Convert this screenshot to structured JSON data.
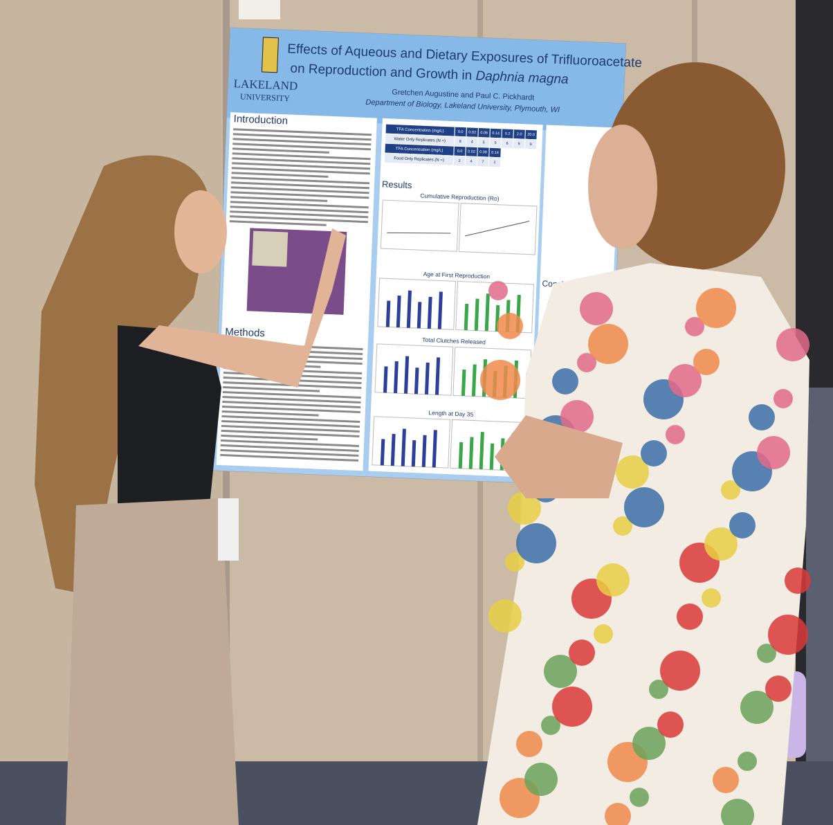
{
  "poster": {
    "logo": {
      "line1": "LAKELAND",
      "line2": "UNIVERSITY"
    },
    "title": {
      "line1": "Effects of Aqueous and Dietary Exposures of Trifluoroacetate",
      "line2": "on Reproduction and Growth in",
      "species": "Daphnia magna"
    },
    "authors": "Gretchen Augustine and Paul C. Pickhardt",
    "affiliation": "Department of Biology, Lakeland University, Plymouth, WI",
    "sections": {
      "introduction": "Introduction",
      "methods": "Methods",
      "results": "Results",
      "conclusion": "Conclusion and Implications"
    },
    "table": {
      "rows": [
        [
          "TFA Concentration (mg/L)",
          "0.0",
          "0.02",
          "0.06",
          "0.14",
          "0.2",
          "2.0",
          "20.0"
        ],
        [
          "Water Only Replicates (N =)",
          "8",
          "4",
          "5",
          "5",
          "6",
          "9",
          "9"
        ],
        [
          "TFA Concentration (mg/L)",
          "0.0",
          "0.02",
          "0.08",
          "0.14"
        ],
        [
          "Food Only Replicates (N =)",
          "2",
          "4",
          "7",
          "1"
        ]
      ]
    },
    "figures": [
      "Cumulative Reproduction (Ro)",
      "Age at First Reproduction",
      "Total Clutches Released",
      "Length at Day 35"
    ]
  }
}
